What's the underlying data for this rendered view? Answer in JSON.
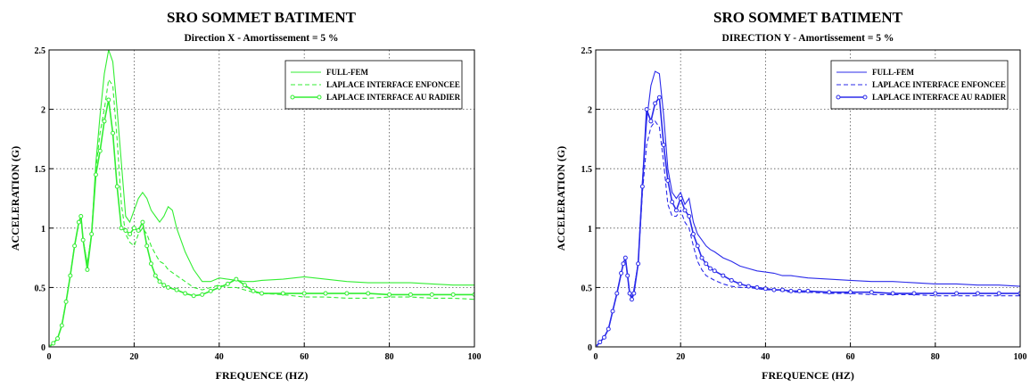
{
  "chart_data": [
    {
      "type": "line",
      "title": "SRO SOMMET BATIMENT",
      "subtitle": "Direction X - Amortissement = 5 %",
      "xlabel": "FREQUENCE (HZ)",
      "ylabel": "ACCELERATION (G)",
      "xlim": [
        0,
        100
      ],
      "ylim": [
        0,
        2.5
      ],
      "xticks": [
        "0",
        "20",
        "40",
        "60",
        "80",
        "100"
      ],
      "yticks": [
        "0",
        "0.5",
        "1",
        "1.5",
        "2",
        "2.5"
      ],
      "grid": true,
      "legend_position": "top-right",
      "color": "#33ee33",
      "series": [
        {
          "name": "FULL-FEM",
          "style": "solid",
          "x": [
            0,
            1,
            2,
            3,
            4,
            5,
            6,
            7,
            7.5,
            8,
            9,
            10,
            11,
            12,
            13,
            14,
            15,
            16,
            17,
            18,
            19,
            20,
            21,
            22,
            23,
            24,
            25,
            26,
            27,
            28,
            29,
            30,
            32,
            34,
            36,
            38,
            40,
            42,
            44,
            46,
            48,
            50,
            55,
            60,
            65,
            70,
            75,
            80,
            85,
            90,
            95,
            100
          ],
          "y": [
            0,
            0.03,
            0.07,
            0.18,
            0.38,
            0.6,
            0.85,
            1.05,
            1.1,
            0.9,
            0.7,
            0.95,
            1.55,
            1.95,
            2.3,
            2.5,
            2.4,
            2.0,
            1.55,
            1.1,
            1.05,
            1.15,
            1.25,
            1.3,
            1.25,
            1.15,
            1.1,
            1.05,
            1.1,
            1.18,
            1.15,
            1.0,
            0.8,
            0.65,
            0.55,
            0.55,
            0.58,
            0.57,
            0.56,
            0.55,
            0.55,
            0.56,
            0.57,
            0.59,
            0.57,
            0.55,
            0.54,
            0.54,
            0.54,
            0.53,
            0.52,
            0.52
          ]
        },
        {
          "name": "LAPLACE INTERFACE ENFONCEE",
          "style": "dashed",
          "x": [
            0,
            1,
            2,
            3,
            4,
            5,
            6,
            7,
            7.5,
            8,
            9,
            10,
            11,
            12,
            13,
            14,
            15,
            16,
            17,
            18,
            19,
            20,
            21,
            22,
            23,
            24,
            25,
            26,
            27,
            28,
            30,
            32,
            34,
            36,
            38,
            40,
            42,
            44,
            46,
            48,
            50,
            55,
            60,
            65,
            70,
            75,
            80,
            85,
            90,
            95,
            100
          ],
          "y": [
            0,
            0.03,
            0.07,
            0.18,
            0.38,
            0.6,
            0.85,
            1.05,
            1.1,
            0.9,
            0.7,
            0.95,
            1.5,
            1.8,
            2.0,
            2.25,
            2.2,
            1.75,
            1.2,
            0.95,
            0.88,
            0.85,
            0.95,
            1.0,
            0.95,
            0.85,
            0.78,
            0.72,
            0.7,
            0.65,
            0.6,
            0.55,
            0.5,
            0.48,
            0.5,
            0.52,
            0.5,
            0.5,
            0.48,
            0.46,
            0.45,
            0.44,
            0.42,
            0.42,
            0.41,
            0.41,
            0.42,
            0.42,
            0.41,
            0.41,
            0.4
          ]
        },
        {
          "name": "LAPLACE INTERFACE AU RADIER",
          "style": "circles",
          "x": [
            0,
            1,
            2,
            3,
            4,
            5,
            6,
            7,
            7.5,
            8,
            9,
            10,
            11,
            12,
            13,
            14,
            15,
            16,
            17,
            18,
            19,
            20,
            21,
            22,
            23,
            24,
            25,
            26,
            27,
            28,
            30,
            32,
            34,
            36,
            38,
            40,
            42,
            44,
            46,
            48,
            50,
            55,
            60,
            65,
            70,
            75,
            80,
            85,
            90,
            95,
            100
          ],
          "y": [
            0,
            0.03,
            0.07,
            0.18,
            0.38,
            0.6,
            0.85,
            1.05,
            1.1,
            0.9,
            0.65,
            0.95,
            1.45,
            1.65,
            1.9,
            2.08,
            1.8,
            1.35,
            1.0,
            0.98,
            0.95,
            1.0,
            0.98,
            1.05,
            0.85,
            0.7,
            0.6,
            0.55,
            0.52,
            0.5,
            0.48,
            0.45,
            0.43,
            0.44,
            0.47,
            0.5,
            0.53,
            0.57,
            0.52,
            0.47,
            0.45,
            0.45,
            0.45,
            0.45,
            0.45,
            0.45,
            0.44,
            0.44,
            0.44,
            0.44,
            0.44
          ]
        }
      ]
    },
    {
      "type": "line",
      "title": "SRO SOMMET BATIMENT",
      "subtitle": "DIRECTION Y - Amortissement = 5 %",
      "xlabel": "FREQUENCE (HZ)",
      "ylabel": "ACCELERATION (G)",
      "xlim": [
        0,
        100
      ],
      "ylim": [
        0,
        2.5
      ],
      "xticks": [
        "0",
        "20",
        "40",
        "60",
        "80",
        "100"
      ],
      "yticks": [
        "0",
        "0.5",
        "1",
        "1.5",
        "2",
        "2.5"
      ],
      "grid": true,
      "legend_position": "top-right",
      "color": "#2b2bea",
      "series": [
        {
          "name": "FULL-FEM",
          "style": "solid",
          "x": [
            0,
            1,
            2,
            3,
            4,
            5,
            6,
            6.5,
            7,
            7.5,
            8,
            8.5,
            9,
            10,
            11,
            12,
            13,
            14,
            15,
            16,
            17,
            18,
            19,
            20,
            21,
            22,
            23,
            24,
            25,
            26,
            27,
            28,
            30,
            32,
            34,
            36,
            38,
            40,
            42,
            44,
            46,
            48,
            50,
            55,
            60,
            65,
            70,
            75,
            80,
            85,
            90,
            95,
            100
          ],
          "y": [
            0,
            0.04,
            0.08,
            0.15,
            0.3,
            0.45,
            0.62,
            0.7,
            0.75,
            0.6,
            0.45,
            0.42,
            0.48,
            0.7,
            1.4,
            1.9,
            2.2,
            2.32,
            2.3,
            1.95,
            1.5,
            1.3,
            1.25,
            1.3,
            1.2,
            1.25,
            1.05,
            0.95,
            0.9,
            0.85,
            0.82,
            0.8,
            0.75,
            0.72,
            0.68,
            0.66,
            0.64,
            0.63,
            0.62,
            0.6,
            0.6,
            0.59,
            0.58,
            0.57,
            0.56,
            0.55,
            0.55,
            0.54,
            0.53,
            0.53,
            0.52,
            0.52,
            0.51
          ]
        },
        {
          "name": "LAPLACE INTERFACE ENFONCEE",
          "style": "dashed",
          "x": [
            0,
            1,
            2,
            3,
            4,
            5,
            6,
            6.5,
            7,
            7.5,
            8,
            8.5,
            9,
            10,
            11,
            12,
            13,
            14,
            15,
            16,
            17,
            18,
            19,
            20,
            21,
            22,
            23,
            24,
            25,
            26,
            27,
            28,
            30,
            32,
            34,
            36,
            38,
            40,
            42,
            44,
            46,
            48,
            50,
            55,
            60,
            65,
            70,
            75,
            80,
            85,
            90,
            95,
            100
          ],
          "y": [
            0,
            0.04,
            0.08,
            0.15,
            0.3,
            0.45,
            0.62,
            0.7,
            0.75,
            0.6,
            0.45,
            0.42,
            0.48,
            0.7,
            1.3,
            1.7,
            1.85,
            1.9,
            1.85,
            1.55,
            1.2,
            1.1,
            1.1,
            1.15,
            1.05,
            1.0,
            0.85,
            0.72,
            0.65,
            0.6,
            0.58,
            0.56,
            0.53,
            0.51,
            0.5,
            0.5,
            0.49,
            0.48,
            0.48,
            0.47,
            0.46,
            0.46,
            0.46,
            0.45,
            0.45,
            0.44,
            0.44,
            0.44,
            0.43,
            0.43,
            0.43,
            0.43,
            0.43
          ]
        },
        {
          "name": "LAPLACE INTERFACE AU RADIER",
          "style": "circles",
          "x": [
            0,
            1,
            2,
            3,
            4,
            5,
            6,
            6.5,
            7,
            7.5,
            8,
            8.5,
            9,
            10,
            11,
            12,
            13,
            14,
            15,
            16,
            17,
            18,
            19,
            20,
            21,
            22,
            23,
            24,
            25,
            26,
            27,
            28,
            30,
            32,
            34,
            36,
            38,
            40,
            42,
            44,
            46,
            48,
            50,
            55,
            60,
            65,
            70,
            75,
            80,
            85,
            90,
            95,
            100
          ],
          "y": [
            0,
            0.04,
            0.08,
            0.15,
            0.3,
            0.45,
            0.62,
            0.7,
            0.75,
            0.6,
            0.45,
            0.4,
            0.45,
            0.7,
            1.35,
            2.0,
            1.9,
            2.05,
            2.1,
            1.7,
            1.4,
            1.22,
            1.15,
            1.25,
            1.15,
            1.1,
            0.95,
            0.85,
            0.75,
            0.7,
            0.66,
            0.64,
            0.6,
            0.56,
            0.53,
            0.51,
            0.5,
            0.49,
            0.48,
            0.48,
            0.47,
            0.47,
            0.47,
            0.46,
            0.46,
            0.46,
            0.45,
            0.45,
            0.45,
            0.45,
            0.45,
            0.45,
            0.45
          ]
        }
      ]
    }
  ]
}
